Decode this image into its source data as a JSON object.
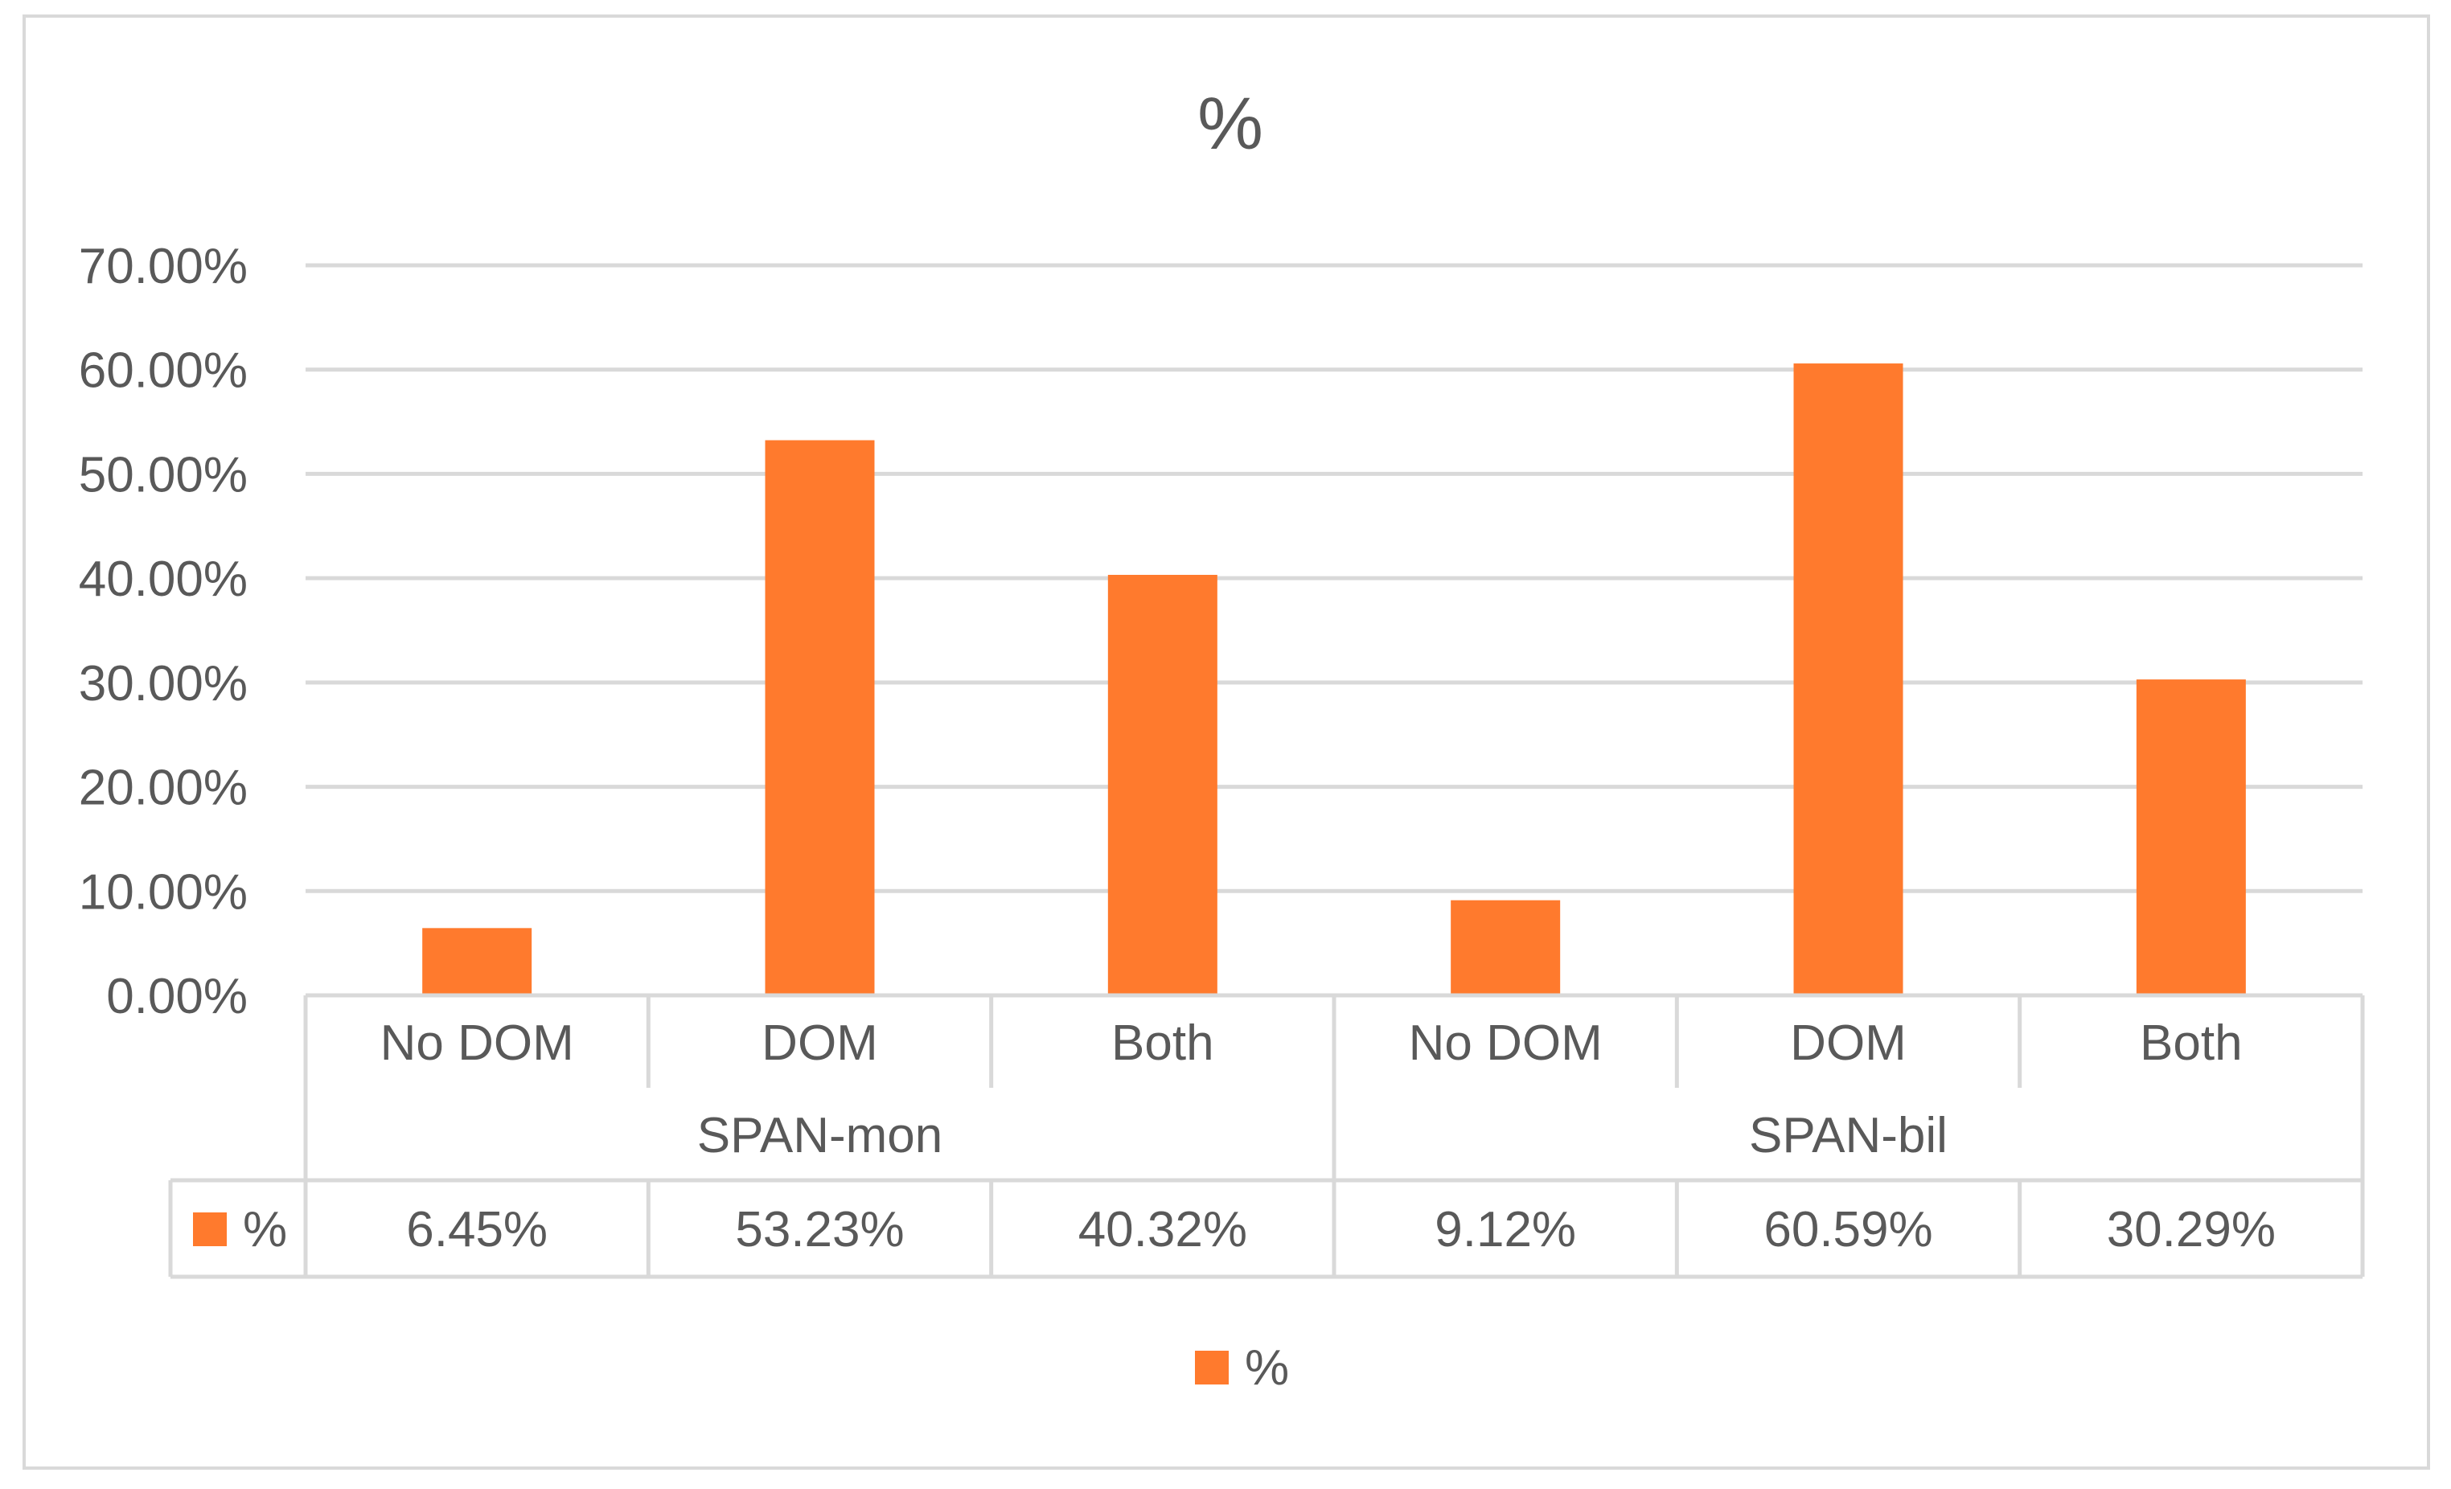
{
  "chart_data": {
    "type": "bar",
    "title": "%",
    "groups": [
      {
        "label": "SPAN-mon",
        "categories": [
          "No DOM",
          "DOM",
          "Both"
        ]
      },
      {
        "label": "SPAN-bil",
        "categories": [
          "No DOM",
          "DOM",
          "Both"
        ]
      }
    ],
    "categories": [
      "No DOM",
      "DOM",
      "Both",
      "No DOM",
      "DOM",
      "Both"
    ],
    "series": [
      {
        "name": "%",
        "color": "#FF7A2D",
        "values": [
          6.45,
          53.23,
          40.32,
          9.12,
          60.59,
          30.29
        ],
        "value_labels": [
          "6.45%",
          "53.23%",
          "40.32%",
          "9.12%",
          "60.59%",
          "30.29%"
        ]
      }
    ],
    "ylim": [
      0,
      70
    ],
    "yticks": [
      0,
      10,
      20,
      30,
      40,
      50,
      60,
      70
    ],
    "ytick_labels": [
      "0.00%",
      "10.00%",
      "20.00%",
      "30.00%",
      "40.00%",
      "50.00%",
      "60.00%",
      "70.00%"
    ],
    "grid": true,
    "legend": {
      "position": "bottom",
      "entries": [
        "%"
      ]
    },
    "data_table": true,
    "xlabel": "",
    "ylabel": ""
  }
}
